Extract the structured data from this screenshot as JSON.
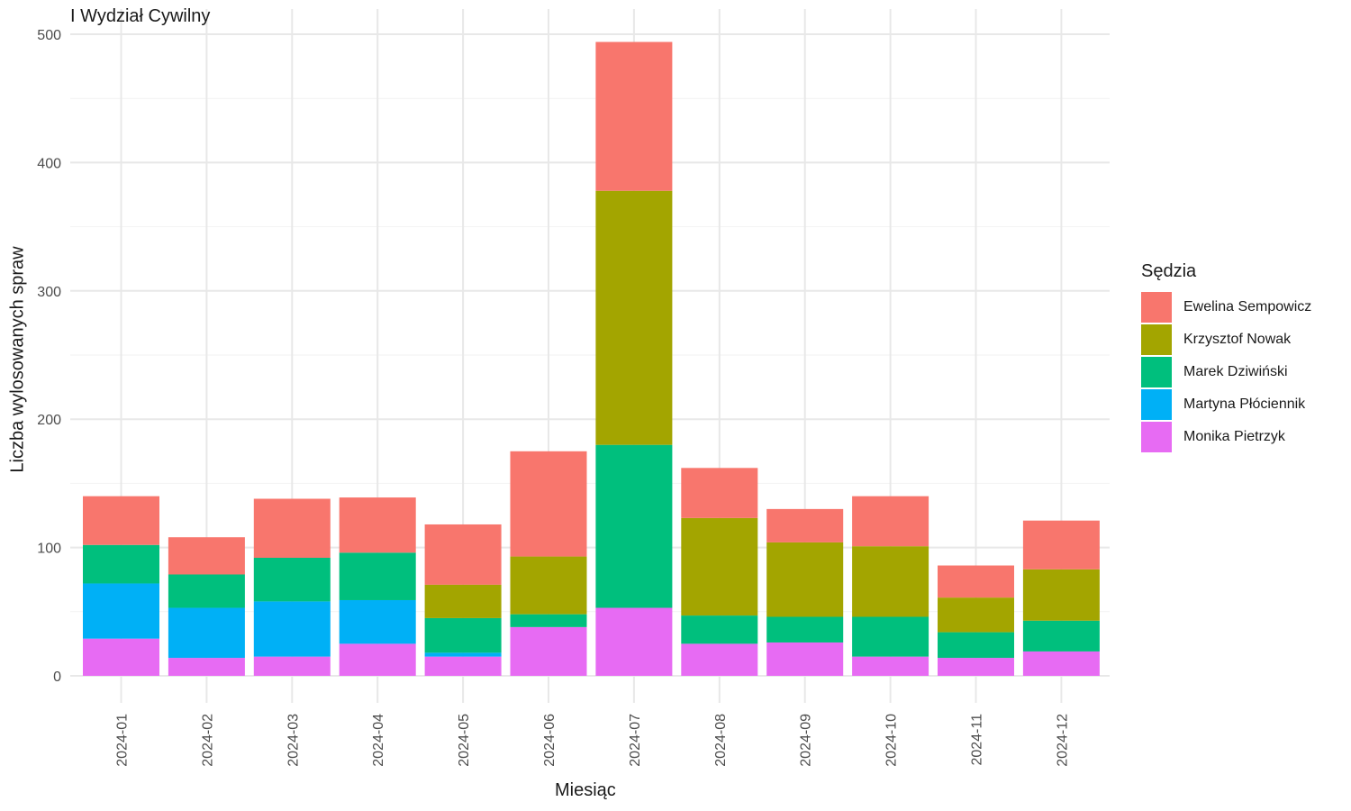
{
  "chart_data": {
    "type": "bar",
    "stacked": true,
    "title": "I Wydział Cywilny",
    "xlabel": "Miesiąc",
    "ylabel": "Liczba wylosowanych spraw",
    "ylim": [
      0,
      520
    ],
    "yticks": [
      0,
      100,
      200,
      300,
      400,
      500
    ],
    "grid": true,
    "legend_position": "right",
    "legend_title": "Sędzia",
    "categories": [
      "2024-01",
      "2024-02",
      "2024-03",
      "2024-04",
      "2024-05",
      "2024-06",
      "2024-07",
      "2024-08",
      "2024-09",
      "2024-10",
      "2024-11",
      "2024-12"
    ],
    "series": [
      {
        "name": "Monika Pietrzyk",
        "color": "#E76BF3",
        "values": [
          29,
          14,
          15,
          25,
          15,
          38,
          53,
          25,
          26,
          15,
          14,
          19
        ]
      },
      {
        "name": "Martyna Płóciennik",
        "color": "#00B0F6",
        "values": [
          43,
          39,
          43,
          34,
          3,
          0,
          0,
          0,
          0,
          0,
          0,
          0
        ]
      },
      {
        "name": "Marek Dziwiński",
        "color": "#00BF7D",
        "values": [
          30,
          26,
          34,
          37,
          27,
          10,
          127,
          22,
          20,
          31,
          20,
          24
        ]
      },
      {
        "name": "Krzysztof Nowak",
        "color": "#A3A500",
        "values": [
          0,
          0,
          0,
          0,
          26,
          45,
          198,
          76,
          58,
          55,
          27,
          40
        ]
      },
      {
        "name": "Ewelina Sempowicz",
        "color": "#F8766D",
        "values": [
          38,
          29,
          46,
          43,
          47,
          82,
          116,
          39,
          26,
          39,
          25,
          38
        ]
      }
    ],
    "legend_order": [
      "Ewelina Sempowicz",
      "Krzysztof Nowak",
      "Marek Dziwiński",
      "Martyna Płóciennik",
      "Monika Pietrzyk"
    ]
  }
}
